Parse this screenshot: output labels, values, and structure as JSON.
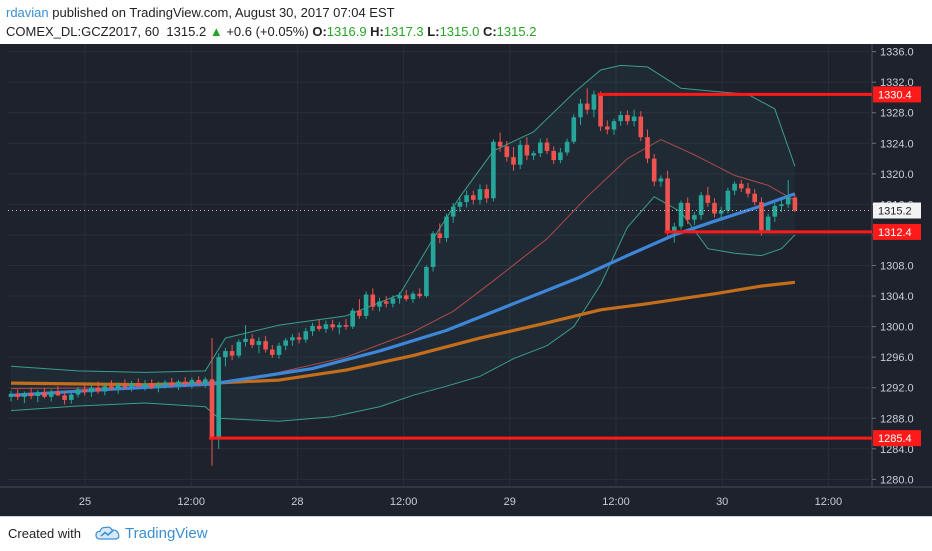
{
  "header": {
    "author": "rdavian",
    "published_text": "published on TradingView.com, August 30, 2017 07:04 EST",
    "symbol": "COMEX_DL:GCZ2017, 60",
    "last_price": "1315.2",
    "change": "+0.6 (+0.05%)",
    "open_label": "O:",
    "open_value": "1316.9",
    "high_label": "H:",
    "high_value": "1317.3",
    "low_label": "L:",
    "low_value": "1315.0",
    "close_label": "C:",
    "close_value": "1315.2"
  },
  "footer": {
    "created_with": "Created with",
    "brand": "TradingView"
  },
  "colors": {
    "background": "#1e222d",
    "grid": "#2a2e39",
    "candle_up": "#26a69a",
    "candle_down": "#ef5350",
    "ema_fast": "#3d86d9",
    "ema_slow": "#c46e1c",
    "bollinger": "#3a9e88",
    "bollinger_mid": "#b04a4a",
    "level_line": "#ff1a1a",
    "price_line": "#e8b0b8"
  },
  "chart_data": {
    "type": "candlestick",
    "symbol": "COMEX_DL:GCZ2017",
    "interval": "60",
    "ylim": [
      1279,
      1337
    ],
    "y_ticks": [
      1280.0,
      1284.0,
      1288.0,
      1292.0,
      1296.0,
      1300.0,
      1304.0,
      1308.0,
      1312.0,
      1316.0,
      1320.0,
      1324.0,
      1328.0,
      1332.0,
      1336.0
    ],
    "x_ticks": [
      "25",
      "12:00",
      "28",
      "12:00",
      "29",
      "12:00",
      "30",
      "12:00"
    ],
    "candles": [
      {
        "o": 1290.8,
        "h": 1291.6,
        "l": 1290.2,
        "c": 1291.2
      },
      {
        "o": 1291.2,
        "h": 1291.8,
        "l": 1290.4,
        "c": 1290.8
      },
      {
        "o": 1290.8,
        "h": 1291.5,
        "l": 1290.0,
        "c": 1291.3
      },
      {
        "o": 1291.3,
        "h": 1292.0,
        "l": 1290.5,
        "c": 1290.9
      },
      {
        "o": 1290.9,
        "h": 1291.7,
        "l": 1290.1,
        "c": 1291.4
      },
      {
        "o": 1291.4,
        "h": 1291.9,
        "l": 1290.6,
        "c": 1290.8
      },
      {
        "o": 1290.8,
        "h": 1291.8,
        "l": 1290.2,
        "c": 1291.5
      },
      {
        "o": 1291.5,
        "h": 1292.2,
        "l": 1290.9,
        "c": 1291.0
      },
      {
        "o": 1291.0,
        "h": 1291.6,
        "l": 1289.8,
        "c": 1290.4
      },
      {
        "o": 1290.4,
        "h": 1291.4,
        "l": 1289.9,
        "c": 1291.1
      },
      {
        "o": 1291.1,
        "h": 1292.1,
        "l": 1290.7,
        "c": 1291.8
      },
      {
        "o": 1291.8,
        "h": 1292.5,
        "l": 1291.0,
        "c": 1291.4
      },
      {
        "o": 1291.4,
        "h": 1292.4,
        "l": 1290.8,
        "c": 1292.0
      },
      {
        "o": 1292.0,
        "h": 1292.8,
        "l": 1291.2,
        "c": 1291.5
      },
      {
        "o": 1291.5,
        "h": 1292.6,
        "l": 1291.0,
        "c": 1292.2
      },
      {
        "o": 1292.2,
        "h": 1293.0,
        "l": 1291.6,
        "c": 1291.9
      },
      {
        "o": 1291.9,
        "h": 1292.7,
        "l": 1291.2,
        "c": 1292.4
      },
      {
        "o": 1292.4,
        "h": 1293.1,
        "l": 1291.7,
        "c": 1292.1
      },
      {
        "o": 1292.1,
        "h": 1292.9,
        "l": 1291.5,
        "c": 1292.6
      },
      {
        "o": 1292.6,
        "h": 1293.2,
        "l": 1291.9,
        "c": 1292.2
      },
      {
        "o": 1292.2,
        "h": 1293.0,
        "l": 1291.6,
        "c": 1292.5
      },
      {
        "o": 1292.5,
        "h": 1293.1,
        "l": 1291.8,
        "c": 1292.0
      },
      {
        "o": 1292.0,
        "h": 1292.8,
        "l": 1291.4,
        "c": 1292.4
      },
      {
        "o": 1292.4,
        "h": 1293.0,
        "l": 1291.9,
        "c": 1292.7
      },
      {
        "o": 1292.7,
        "h": 1293.3,
        "l": 1292.0,
        "c": 1292.3
      },
      {
        "o": 1292.3,
        "h": 1293.0,
        "l": 1291.7,
        "c": 1292.8
      },
      {
        "o": 1292.8,
        "h": 1293.4,
        "l": 1292.1,
        "c": 1292.5
      },
      {
        "o": 1292.5,
        "h": 1293.3,
        "l": 1291.9,
        "c": 1293.0
      },
      {
        "o": 1293.0,
        "h": 1293.5,
        "l": 1292.2,
        "c": 1292.6
      },
      {
        "o": 1292.6,
        "h": 1293.4,
        "l": 1292.0,
        "c": 1293.1
      },
      {
        "o": 1293.1,
        "h": 1298.5,
        "l": 1281.8,
        "c": 1285.4
      },
      {
        "o": 1285.4,
        "h": 1296.5,
        "l": 1284.0,
        "c": 1296.0
      },
      {
        "o": 1296.0,
        "h": 1297.2,
        "l": 1294.8,
        "c": 1296.8
      },
      {
        "o": 1296.8,
        "h": 1297.6,
        "l": 1295.6,
        "c": 1296.2
      },
      {
        "o": 1296.2,
        "h": 1298.3,
        "l": 1295.9,
        "c": 1298.0
      },
      {
        "o": 1298.0,
        "h": 1300.2,
        "l": 1297.4,
        "c": 1298.4
      },
      {
        "o": 1298.4,
        "h": 1299.0,
        "l": 1297.2,
        "c": 1297.6
      },
      {
        "o": 1297.6,
        "h": 1298.6,
        "l": 1296.5,
        "c": 1298.1
      },
      {
        "o": 1298.1,
        "h": 1298.8,
        "l": 1296.6,
        "c": 1297.0
      },
      {
        "o": 1297.0,
        "h": 1297.6,
        "l": 1295.9,
        "c": 1296.3
      },
      {
        "o": 1296.3,
        "h": 1297.9,
        "l": 1295.8,
        "c": 1297.5
      },
      {
        "o": 1297.5,
        "h": 1298.5,
        "l": 1296.9,
        "c": 1298.2
      },
      {
        "o": 1298.2,
        "h": 1299.0,
        "l": 1297.5,
        "c": 1298.6
      },
      {
        "o": 1298.6,
        "h": 1299.2,
        "l": 1297.8,
        "c": 1298.3
      },
      {
        "o": 1298.3,
        "h": 1299.8,
        "l": 1297.9,
        "c": 1299.4
      },
      {
        "o": 1299.4,
        "h": 1300.5,
        "l": 1298.8,
        "c": 1300.1
      },
      {
        "o": 1300.1,
        "h": 1300.9,
        "l": 1299.4,
        "c": 1299.7
      },
      {
        "o": 1299.7,
        "h": 1300.8,
        "l": 1299.2,
        "c": 1300.3
      },
      {
        "o": 1300.3,
        "h": 1300.9,
        "l": 1299.5,
        "c": 1299.9
      },
      {
        "o": 1299.9,
        "h": 1300.6,
        "l": 1299.0,
        "c": 1300.2
      },
      {
        "o": 1300.2,
        "h": 1301.0,
        "l": 1299.6,
        "c": 1300.0
      },
      {
        "o": 1300.0,
        "h": 1302.4,
        "l": 1299.7,
        "c": 1302.1
      },
      {
        "o": 1302.1,
        "h": 1303.6,
        "l": 1301.0,
        "c": 1301.4
      },
      {
        "o": 1301.4,
        "h": 1304.6,
        "l": 1301.0,
        "c": 1304.2
      },
      {
        "o": 1304.2,
        "h": 1305.0,
        "l": 1302.1,
        "c": 1302.6
      },
      {
        "o": 1302.6,
        "h": 1303.8,
        "l": 1302.0,
        "c": 1303.3
      },
      {
        "o": 1303.3,
        "h": 1304.0,
        "l": 1302.5,
        "c": 1303.0
      },
      {
        "o": 1303.0,
        "h": 1304.1,
        "l": 1302.5,
        "c": 1303.7
      },
      {
        "o": 1303.7,
        "h": 1304.5,
        "l": 1303.0,
        "c": 1304.1
      },
      {
        "o": 1304.1,
        "h": 1304.8,
        "l": 1303.3,
        "c": 1303.6
      },
      {
        "o": 1303.6,
        "h": 1304.6,
        "l": 1303.1,
        "c": 1304.3
      },
      {
        "o": 1304.3,
        "h": 1305.0,
        "l": 1303.7,
        "c": 1304.0
      },
      {
        "o": 1304.0,
        "h": 1308.0,
        "l": 1303.8,
        "c": 1307.8
      },
      {
        "o": 1307.8,
        "h": 1312.5,
        "l": 1307.2,
        "c": 1312.2
      },
      {
        "o": 1312.2,
        "h": 1313.5,
        "l": 1310.9,
        "c": 1311.6
      },
      {
        "o": 1311.6,
        "h": 1314.8,
        "l": 1311.1,
        "c": 1314.4
      },
      {
        "o": 1314.4,
        "h": 1316.2,
        "l": 1313.6,
        "c": 1315.7
      },
      {
        "o": 1315.7,
        "h": 1316.9,
        "l": 1315.0,
        "c": 1316.3
      },
      {
        "o": 1316.3,
        "h": 1317.8,
        "l": 1315.6,
        "c": 1317.2
      },
      {
        "o": 1317.2,
        "h": 1317.8,
        "l": 1316.0,
        "c": 1316.6
      },
      {
        "o": 1316.6,
        "h": 1318.6,
        "l": 1316.0,
        "c": 1318.0
      },
      {
        "o": 1318.0,
        "h": 1318.6,
        "l": 1316.2,
        "c": 1316.8
      },
      {
        "o": 1316.8,
        "h": 1324.5,
        "l": 1316.4,
        "c": 1324.2
      },
      {
        "o": 1324.2,
        "h": 1325.4,
        "l": 1322.9,
        "c": 1323.6
      },
      {
        "o": 1323.6,
        "h": 1324.3,
        "l": 1321.6,
        "c": 1322.2
      },
      {
        "o": 1322.2,
        "h": 1323.5,
        "l": 1320.4,
        "c": 1321.2
      },
      {
        "o": 1321.2,
        "h": 1324.4,
        "l": 1320.6,
        "c": 1323.8
      },
      {
        "o": 1323.8,
        "h": 1324.8,
        "l": 1321.8,
        "c": 1322.4
      },
      {
        "o": 1322.4,
        "h": 1323.0,
        "l": 1321.8,
        "c": 1322.7
      },
      {
        "o": 1322.7,
        "h": 1324.6,
        "l": 1322.2,
        "c": 1324.1
      },
      {
        "o": 1324.1,
        "h": 1324.7,
        "l": 1322.6,
        "c": 1323.0
      },
      {
        "o": 1323.0,
        "h": 1323.6,
        "l": 1321.3,
        "c": 1321.8
      },
      {
        "o": 1321.8,
        "h": 1323.4,
        "l": 1321.4,
        "c": 1322.8
      },
      {
        "o": 1322.8,
        "h": 1324.6,
        "l": 1322.4,
        "c": 1324.2
      },
      {
        "o": 1324.2,
        "h": 1327.8,
        "l": 1323.9,
        "c": 1327.4
      },
      {
        "o": 1327.4,
        "h": 1329.8,
        "l": 1326.4,
        "c": 1329.2
      },
      {
        "o": 1329.2,
        "h": 1331.2,
        "l": 1327.8,
        "c": 1328.4
      },
      {
        "o": 1328.4,
        "h": 1330.9,
        "l": 1327.4,
        "c": 1330.4
      },
      {
        "o": 1330.4,
        "h": 1330.8,
        "l": 1325.6,
        "c": 1326.2
      },
      {
        "o": 1326.2,
        "h": 1327.0,
        "l": 1325.2,
        "c": 1325.8
      },
      {
        "o": 1325.8,
        "h": 1327.2,
        "l": 1325.1,
        "c": 1326.9
      },
      {
        "o": 1326.9,
        "h": 1328.2,
        "l": 1326.3,
        "c": 1327.7
      },
      {
        "o": 1327.7,
        "h": 1328.3,
        "l": 1326.4,
        "c": 1326.9
      },
      {
        "o": 1326.9,
        "h": 1328.4,
        "l": 1326.2,
        "c": 1327.5
      },
      {
        "o": 1327.5,
        "h": 1328.2,
        "l": 1324.3,
        "c": 1324.8
      },
      {
        "o": 1324.8,
        "h": 1325.8,
        "l": 1321.4,
        "c": 1322.0
      },
      {
        "o": 1322.0,
        "h": 1322.6,
        "l": 1318.4,
        "c": 1319.0
      },
      {
        "o": 1319.0,
        "h": 1319.8,
        "l": 1318.3,
        "c": 1319.4
      },
      {
        "o": 1319.4,
        "h": 1320.4,
        "l": 1311.9,
        "c": 1312.4
      },
      {
        "o": 1312.4,
        "h": 1313.6,
        "l": 1311.0,
        "c": 1313.1
      },
      {
        "o": 1313.1,
        "h": 1316.5,
        "l": 1312.7,
        "c": 1316.2
      },
      {
        "o": 1316.2,
        "h": 1316.9,
        "l": 1313.4,
        "c": 1314.0
      },
      {
        "o": 1314.0,
        "h": 1315.0,
        "l": 1313.3,
        "c": 1314.6
      },
      {
        "o": 1314.6,
        "h": 1317.6,
        "l": 1314.0,
        "c": 1317.2
      },
      {
        "o": 1317.2,
        "h": 1318.3,
        "l": 1315.7,
        "c": 1316.2
      },
      {
        "o": 1316.2,
        "h": 1316.8,
        "l": 1314.3,
        "c": 1314.8
      },
      {
        "o": 1314.8,
        "h": 1315.7,
        "l": 1314.1,
        "c": 1315.2
      },
      {
        "o": 1315.2,
        "h": 1318.2,
        "l": 1314.8,
        "c": 1317.8
      },
      {
        "o": 1317.8,
        "h": 1319.0,
        "l": 1317.2,
        "c": 1318.7
      },
      {
        "o": 1318.7,
        "h": 1319.2,
        "l": 1317.6,
        "c": 1318.1
      },
      {
        "o": 1318.1,
        "h": 1318.8,
        "l": 1316.9,
        "c": 1317.4
      },
      {
        "o": 1317.4,
        "h": 1318.0,
        "l": 1315.9,
        "c": 1316.3
      },
      {
        "o": 1316.3,
        "h": 1316.9,
        "l": 1311.9,
        "c": 1312.6
      },
      {
        "o": 1312.6,
        "h": 1314.8,
        "l": 1312.2,
        "c": 1314.4
      },
      {
        "o": 1314.4,
        "h": 1316.2,
        "l": 1313.7,
        "c": 1315.8
      },
      {
        "o": 1315.8,
        "h": 1316.6,
        "l": 1315.0,
        "c": 1316.0
      },
      {
        "o": 1316.0,
        "h": 1319.2,
        "l": 1315.5,
        "c": 1316.9
      },
      {
        "o": 1316.9,
        "h": 1317.3,
        "l": 1315.0,
        "c": 1315.2
      }
    ],
    "ema_fast": [
      [
        0,
        1291.0
      ],
      [
        15,
        1291.8
      ],
      [
        30,
        1292.5
      ],
      [
        45,
        1294.5
      ],
      [
        55,
        1296.8
      ],
      [
        65,
        1299.5
      ],
      [
        75,
        1303.0
      ],
      [
        85,
        1306.5
      ],
      [
        92,
        1309.3
      ],
      [
        99,
        1312.0
      ],
      [
        105,
        1313.8
      ],
      [
        112,
        1315.8
      ],
      [
        117,
        1317.4
      ]
    ],
    "ema_slow": [
      [
        0,
        1292.6
      ],
      [
        20,
        1292.4
      ],
      [
        30,
        1292.6
      ],
      [
        40,
        1293.0
      ],
      [
        50,
        1294.3
      ],
      [
        60,
        1296.2
      ],
      [
        70,
        1298.5
      ],
      [
        80,
        1300.5
      ],
      [
        88,
        1302.2
      ],
      [
        95,
        1303.0
      ],
      [
        105,
        1304.3
      ],
      [
        112,
        1305.3
      ],
      [
        117,
        1305.8
      ]
    ],
    "bollinger_upper": [
      [
        0,
        1294.8
      ],
      [
        10,
        1294.2
      ],
      [
        20,
        1294.0
      ],
      [
        29,
        1294.2
      ],
      [
        32,
        1298.5
      ],
      [
        40,
        1300.2
      ],
      [
        50,
        1301.4
      ],
      [
        58,
        1304.2
      ],
      [
        63,
        1311.5
      ],
      [
        67,
        1317.0
      ],
      [
        72,
        1323.0
      ],
      [
        78,
        1325.5
      ],
      [
        84,
        1330.6
      ],
      [
        88,
        1333.6
      ],
      [
        91,
        1334.2
      ],
      [
        95,
        1334.0
      ],
      [
        100,
        1331.2
      ],
      [
        105,
        1330.8
      ],
      [
        110,
        1330.4
      ],
      [
        114,
        1328.5
      ],
      [
        117,
        1321.0
      ]
    ],
    "bollinger_lower": [
      [
        0,
        1289.0
      ],
      [
        10,
        1289.6
      ],
      [
        20,
        1290.0
      ],
      [
        29,
        1289.5
      ],
      [
        31,
        1288.0
      ],
      [
        40,
        1287.6
      ],
      [
        48,
        1288.2
      ],
      [
        55,
        1289.5
      ],
      [
        60,
        1291.0
      ],
      [
        65,
        1292.2
      ],
      [
        70,
        1293.5
      ],
      [
        75,
        1295.8
      ],
      [
        80,
        1297.5
      ],
      [
        84,
        1300.0
      ],
      [
        88,
        1305.5
      ],
      [
        92,
        1313.0
      ],
      [
        96,
        1317.0
      ],
      [
        100,
        1315.0
      ],
      [
        104,
        1310.2
      ],
      [
        108,
        1309.6
      ],
      [
        112,
        1309.3
      ],
      [
        115,
        1310.2
      ],
      [
        117,
        1312.0
      ]
    ],
    "bollinger_mid": [
      [
        0,
        1291.9
      ],
      [
        20,
        1292.0
      ],
      [
        30,
        1292.3
      ],
      [
        40,
        1294.0
      ],
      [
        50,
        1296.0
      ],
      [
        60,
        1299.3
      ],
      [
        66,
        1302.0
      ],
      [
        72,
        1306.0
      ],
      [
        80,
        1311.5
      ],
      [
        86,
        1317.0
      ],
      [
        92,
        1322.0
      ],
      [
        97,
        1324.5
      ],
      [
        102,
        1322.5
      ],
      [
        108,
        1319.8
      ],
      [
        113,
        1318.5
      ],
      [
        117,
        1316.5
      ]
    ],
    "horizontal_levels": [
      {
        "value": 1330.4,
        "label": "1330.4",
        "from_index": 88
      },
      {
        "value": 1312.4,
        "label": "1312.4",
        "from_index": 98
      },
      {
        "value": 1285.4,
        "label": "1285.4",
        "from_index": 30
      }
    ],
    "last_price_label": "1315.2"
  }
}
